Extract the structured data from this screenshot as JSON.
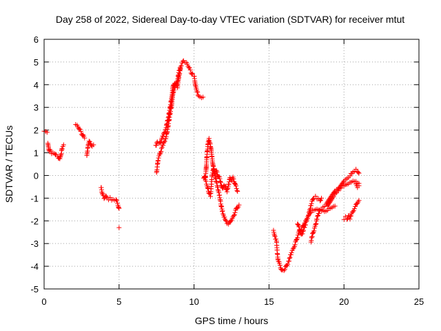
{
  "chart_data": {
    "type": "scatter",
    "title": "Day 258 of 2022, Sidereal Day-to-day VTEC variation (SDTVAR) for receiver mtut",
    "xlabel": "GPS time / hours",
    "ylabel": "SDTVAR / TECUs",
    "xlim": [
      0,
      25
    ],
    "ylim": [
      -5,
      6
    ],
    "xticks": [
      "0",
      "5",
      "10",
      "15",
      "20",
      "25"
    ],
    "yticks": [
      "-5",
      "-4",
      "-3",
      "-2",
      "-1",
      "0",
      "1",
      "2",
      "3",
      "4",
      "5",
      "6"
    ],
    "grid": true,
    "legend": "none",
    "marker": "+",
    "colors": {
      "series": "#ff0000",
      "grid": "#a0a0a0",
      "axis": "#000000"
    },
    "series": [
      {
        "segments": [
          [
            [
              0.0,
              1.95
            ],
            [
              0.1,
              1.95
            ],
            [
              0.2,
              1.9
            ]
          ],
          [
            [
              0.25,
              1.45
            ],
            [
              0.3,
              1.2
            ],
            [
              0.35,
              1.05
            ],
            [
              0.4,
              1.1
            ],
            [
              0.5,
              1.0
            ],
            [
              0.6,
              0.95
            ],
            [
              0.7,
              1.0
            ],
            [
              0.8,
              0.9
            ],
            [
              0.9,
              0.85
            ],
            [
              1.0,
              0.75
            ],
            [
              1.05,
              0.7
            ],
            [
              1.1,
              0.85
            ],
            [
              1.15,
              1.0
            ],
            [
              1.2,
              1.2
            ],
            [
              1.3,
              1.35
            ]
          ],
          [
            [
              2.1,
              2.25
            ],
            [
              2.2,
              2.2
            ],
            [
              2.3,
              2.1
            ],
            [
              2.4,
              2.0
            ],
            [
              2.5,
              1.85
            ],
            [
              2.6,
              1.75
            ],
            [
              2.7,
              1.65
            ]
          ],
          [
            [
              2.85,
              0.85
            ],
            [
              2.9,
              1.1
            ],
            [
              2.95,
              1.4
            ],
            [
              3.0,
              1.5
            ],
            [
              3.1,
              1.4
            ],
            [
              3.2,
              1.3
            ],
            [
              3.3,
              1.35
            ]
          ],
          [
            [
              3.8,
              -0.5
            ],
            [
              3.85,
              -0.7
            ],
            [
              3.9,
              -0.85
            ],
            [
              4.0,
              -1.0
            ],
            [
              4.1,
              -0.9
            ],
            [
              4.2,
              -1.0
            ],
            [
              4.3,
              -1.05
            ],
            [
              4.4,
              -1.0
            ],
            [
              4.5,
              -1.05
            ],
            [
              4.6,
              -1.1
            ],
            [
              4.7,
              -1.05
            ],
            [
              4.8,
              -1.1
            ],
            [
              4.9,
              -1.2
            ],
            [
              4.95,
              -1.35
            ],
            [
              5.0,
              -1.45
            ]
          ],
          [
            [
              5.0,
              -2.3
            ]
          ],
          [
            [
              7.5,
              0.1
            ],
            [
              7.55,
              0.4
            ],
            [
              7.6,
              0.7
            ],
            [
              7.7,
              0.9
            ],
            [
              7.8,
              1.1
            ],
            [
              7.9,
              1.3
            ],
            [
              8.0,
              1.5
            ],
            [
              8.1,
              1.6
            ],
            [
              8.2,
              1.9
            ],
            [
              8.3,
              2.3
            ],
            [
              8.4,
              2.7
            ],
            [
              8.5,
              3.1
            ],
            [
              8.6,
              3.6
            ],
            [
              8.7,
              3.9
            ],
            [
              8.8,
              4.0
            ],
            [
              8.9,
              4.2
            ],
            [
              9.0,
              4.6
            ],
            [
              9.1,
              4.8
            ],
            [
              9.2,
              4.95
            ],
            [
              9.3,
              5.05
            ],
            [
              9.4,
              5.0
            ],
            [
              9.5,
              4.95
            ],
            [
              9.6,
              4.85
            ],
            [
              9.7,
              4.7
            ],
            [
              9.8,
              4.55
            ],
            [
              9.9,
              4.45
            ],
            [
              10.0,
              4.4
            ],
            [
              10.05,
              4.2
            ],
            [
              10.1,
              3.95
            ],
            [
              10.2,
              3.7
            ],
            [
              10.3,
              3.5
            ],
            [
              10.4,
              3.45
            ],
            [
              10.5,
              3.45
            ],
            [
              10.6,
              3.45
            ]
          ],
          [
            [
              7.45,
              1.3
            ],
            [
              7.55,
              1.5
            ],
            [
              7.7,
              1.4
            ],
            [
              7.8,
              1.5
            ],
            [
              7.9,
              1.7
            ],
            [
              8.0,
              1.9
            ],
            [
              8.1,
              2.0
            ],
            [
              8.2,
              2.3
            ],
            [
              8.3,
              2.6
            ],
            [
              8.4,
              3.0
            ],
            [
              8.5,
              3.4
            ],
            [
              8.6,
              3.9
            ],
            [
              8.7,
              4.1
            ],
            [
              8.8,
              4.0
            ],
            [
              8.9,
              3.9
            ],
            [
              9.0,
              4.4
            ],
            [
              9.1,
              4.7
            ]
          ],
          [
            [
              10.65,
              -0.1
            ],
            [
              10.7,
              0.0
            ],
            [
              10.75,
              -0.2
            ],
            [
              10.8,
              0.2
            ],
            [
              10.85,
              0.8
            ],
            [
              10.9,
              1.2
            ],
            [
              10.95,
              1.5
            ],
            [
              11.0,
              1.6
            ],
            [
              11.1,
              1.3
            ],
            [
              11.2,
              0.8
            ],
            [
              11.3,
              0.3
            ],
            [
              11.4,
              0.1
            ],
            [
              11.5,
              0.2
            ],
            [
              11.6,
              0.0
            ],
            [
              11.7,
              -0.1
            ],
            [
              11.8,
              -0.4
            ],
            [
              11.9,
              -0.6
            ],
            [
              12.0,
              -0.4
            ],
            [
              12.1,
              -0.5
            ],
            [
              12.2,
              -0.7
            ],
            [
              12.3,
              -0.4
            ],
            [
              12.4,
              -0.1
            ],
            [
              12.5,
              -0.2
            ],
            [
              12.6,
              -0.1
            ],
            [
              12.7,
              -0.3
            ],
            [
              12.8,
              -0.5
            ],
            [
              12.9,
              -0.7
            ]
          ],
          [
            [
              10.8,
              -0.3
            ],
            [
              10.9,
              -0.5
            ],
            [
              11.0,
              -0.8
            ],
            [
              11.1,
              -0.9
            ],
            [
              11.2,
              0.0
            ],
            [
              11.3,
              0.3
            ],
            [
              11.4,
              0.0
            ],
            [
              11.5,
              -0.3
            ],
            [
              11.6,
              -0.6
            ],
            [
              11.7,
              -0.9
            ],
            [
              11.8,
              -1.3
            ],
            [
              11.9,
              -1.6
            ],
            [
              12.0,
              -1.8
            ],
            [
              12.1,
              -2.0
            ],
            [
              12.2,
              -2.1
            ],
            [
              12.3,
              -2.15
            ],
            [
              12.4,
              -2.05
            ],
            [
              12.5,
              -1.95
            ],
            [
              12.6,
              -1.85
            ],
            [
              12.7,
              -1.7
            ],
            [
              12.8,
              -1.5
            ],
            [
              12.9,
              -1.4
            ],
            [
              13.0,
              -1.3
            ]
          ],
          [
            [
              15.3,
              -2.4
            ],
            [
              15.35,
              -2.55
            ],
            [
              15.4,
              -2.7
            ],
            [
              15.5,
              -2.9
            ],
            [
              15.55,
              -3.4
            ],
            [
              15.6,
              -3.7
            ],
            [
              15.7,
              -3.9
            ],
            [
              15.8,
              -4.1
            ],
            [
              15.9,
              -4.2
            ],
            [
              16.0,
              -4.15
            ],
            [
              16.1,
              -4.05
            ],
            [
              16.2,
              -3.95
            ],
            [
              16.3,
              -3.8
            ],
            [
              16.4,
              -3.6
            ],
            [
              16.5,
              -3.4
            ],
            [
              16.6,
              -3.25
            ],
            [
              16.7,
              -3.1
            ],
            [
              16.8,
              -2.9
            ],
            [
              16.9,
              -2.7
            ],
            [
              17.0,
              -2.5
            ],
            [
              17.1,
              -2.4
            ],
            [
              17.2,
              -2.3
            ],
            [
              17.3,
              -2.2
            ],
            [
              17.4,
              -2.1
            ],
            [
              17.5,
              -1.95
            ],
            [
              17.6,
              -1.8
            ],
            [
              17.7,
              -1.7
            ],
            [
              17.8,
              -1.6
            ],
            [
              17.9,
              -1.55
            ],
            [
              18.0,
              -1.5
            ],
            [
              18.2,
              -1.45
            ],
            [
              18.4,
              -1.5
            ],
            [
              18.6,
              -1.55
            ],
            [
              18.8,
              -1.6
            ],
            [
              19.0,
              -1.5
            ],
            [
              19.2,
              -1.45
            ],
            [
              19.4,
              -1.35
            ]
          ],
          [
            [
              16.9,
              -2.1
            ],
            [
              17.0,
              -2.3
            ],
            [
              17.1,
              -2.5
            ],
            [
              17.2,
              -2.6
            ],
            [
              17.3,
              -2.4
            ],
            [
              17.4,
              -2.2
            ],
            [
              17.5,
              -2.0
            ],
            [
              17.6,
              -1.8
            ],
            [
              17.7,
              -1.6
            ],
            [
              17.8,
              -1.3
            ],
            [
              17.9,
              -1.1
            ],
            [
              18.0,
              -1.0
            ],
            [
              18.1,
              -0.95
            ],
            [
              18.2,
              -1.0
            ],
            [
              18.3,
              -1.05
            ],
            [
              18.4,
              -1.1
            ],
            [
              18.5,
              -1.0
            ]
          ],
          [
            [
              17.8,
              -2.9
            ],
            [
              17.9,
              -2.6
            ],
            [
              18.0,
              -2.4
            ],
            [
              18.1,
              -2.2
            ],
            [
              18.2,
              -1.9
            ],
            [
              18.3,
              -1.7
            ],
            [
              18.4,
              -1.5
            ],
            [
              18.6,
              -1.4
            ],
            [
              18.8,
              -1.3
            ],
            [
              19.0,
              -1.1
            ],
            [
              19.2,
              -0.9
            ],
            [
              19.4,
              -0.7
            ],
            [
              19.6,
              -0.6
            ],
            [
              19.8,
              -0.4
            ],
            [
              20.0,
              -0.2
            ],
            [
              20.2,
              -0.1
            ],
            [
              20.4,
              0.0
            ],
            [
              20.6,
              0.15
            ],
            [
              20.7,
              0.2
            ],
            [
              20.8,
              0.25
            ],
            [
              20.9,
              0.2
            ],
            [
              21.0,
              0.1
            ]
          ],
          [
            [
              18.9,
              -1.3
            ],
            [
              19.1,
              -1.1
            ],
            [
              19.3,
              -0.9
            ],
            [
              19.5,
              -0.75
            ],
            [
              19.7,
              -0.6
            ],
            [
              19.9,
              -0.5
            ],
            [
              20.1,
              -0.45
            ],
            [
              20.3,
              -0.4
            ],
            [
              20.5,
              -0.3
            ],
            [
              20.7,
              -0.25
            ],
            [
              20.9,
              -0.3
            ],
            [
              21.0,
              -0.35
            ]
          ],
          [
            [
              20.0,
              -1.9
            ],
            [
              20.1,
              -1.85
            ],
            [
              20.2,
              -1.9
            ],
            [
              20.3,
              -1.8
            ],
            [
              20.4,
              -1.9
            ],
            [
              20.5,
              -1.7
            ],
            [
              20.6,
              -1.6
            ],
            [
              20.7,
              -1.45
            ],
            [
              20.8,
              -1.3
            ],
            [
              20.9,
              -1.2
            ],
            [
              21.0,
              -1.1
            ]
          ],
          [
            [
              20.8,
              -0.4
            ],
            [
              20.9,
              -0.5
            ],
            [
              21.0,
              -0.45
            ]
          ]
        ]
      }
    ]
  }
}
